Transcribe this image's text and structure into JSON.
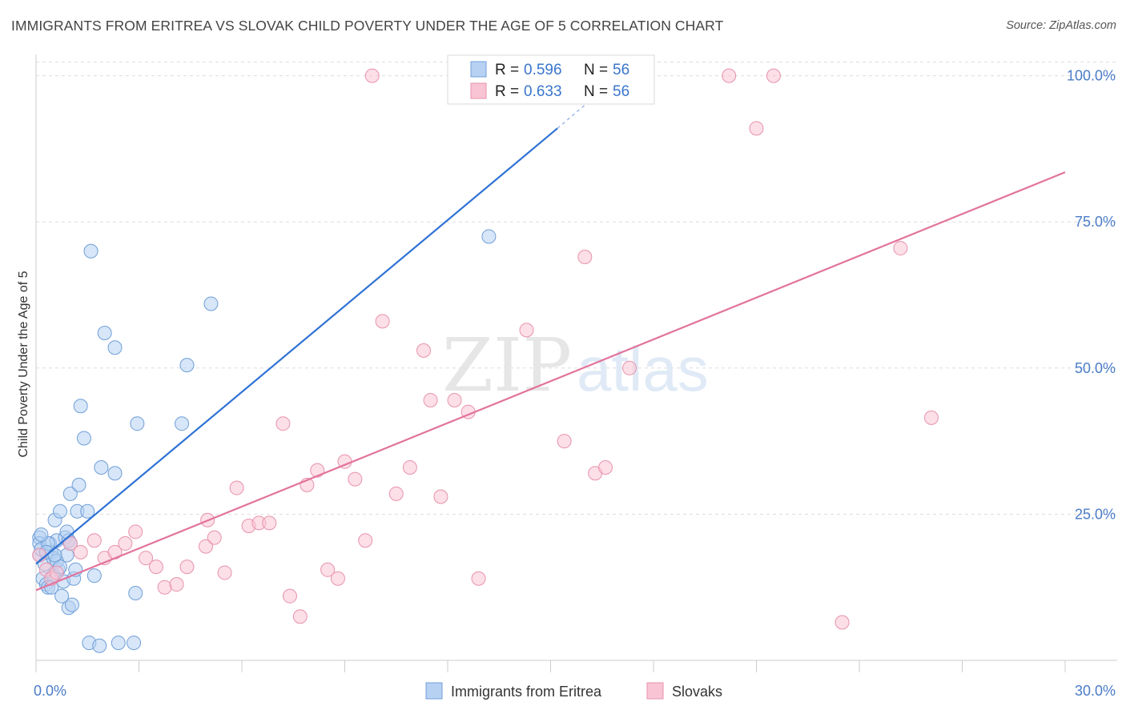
{
  "title": "IMMIGRANTS FROM ERITREA VS SLOVAK CHILD POVERTY UNDER THE AGE OF 5 CORRELATION CHART",
  "source": "Source: ZipAtlas.com",
  "watermark": {
    "zip": "ZIP",
    "atlas": "atlas"
  },
  "colors": {
    "blue_fill": "#b7d1f2",
    "blue_stroke": "#6f9fd8",
    "blue_line": "#2f72d4",
    "pink_fill": "#f9c4d4",
    "pink_stroke": "#e892ad",
    "pink_line": "#e2739c",
    "tick": "#4a7cc7",
    "grid": "#dddddd"
  },
  "legend": {
    "rows": [
      {
        "r_label": "R =",
        "r_value": "0.596",
        "n_label": "N =",
        "n_value": "56"
      },
      {
        "r_label": "R =",
        "r_value": "0.633",
        "n_label": "N =",
        "n_value": "56"
      }
    ]
  },
  "chart_data": {
    "type": "scatter",
    "title": "IMMIGRANTS FROM ERITREA VS SLOVAK CHILD POVERTY UNDER THE AGE OF 5 CORRELATION CHART",
    "xlabel": "",
    "ylabel": "Child Poverty Under the Age of 5",
    "xlim": [
      0,
      30
    ],
    "ylim": [
      0,
      102
    ],
    "x_tick_labels": [
      {
        "value": 0,
        "label": "0.0%"
      },
      {
        "value": 30,
        "label": "30.0%"
      }
    ],
    "y_tick_labels": [
      {
        "value": 25,
        "label": "25.0%"
      },
      {
        "value": 50,
        "label": "50.0%"
      },
      {
        "value": 75,
        "label": "75.0%"
      },
      {
        "value": 100,
        "label": "100.0%"
      }
    ],
    "x_minor_ticks": [
      0,
      3,
      6,
      9,
      12,
      15,
      18,
      21,
      24,
      27,
      30
    ],
    "grid": true,
    "legend_position": "top-center",
    "series": [
      {
        "name": "Immigrants from Eritrea",
        "color": "blue",
        "r": 0.596,
        "n": 56,
        "trend": {
          "x0": 0.0,
          "y0": 16.5,
          "x1": 15.2,
          "y1": 91.0,
          "dashed_to_x": 16.5,
          "dashed_to_y": 97.5
        },
        "points": [
          [
            0.1,
            21.0
          ],
          [
            0.1,
            20.0
          ],
          [
            0.1,
            18.0
          ],
          [
            0.15,
            19.0
          ],
          [
            0.2,
            14.0
          ],
          [
            0.25,
            16.5
          ],
          [
            0.3,
            13.0
          ],
          [
            0.35,
            12.5
          ],
          [
            0.4,
            20.0
          ],
          [
            0.45,
            18.5
          ],
          [
            0.5,
            17.5
          ],
          [
            0.55,
            24.0
          ],
          [
            0.6,
            20.5
          ],
          [
            0.65,
            15.5
          ],
          [
            0.7,
            25.5
          ],
          [
            0.75,
            11.0
          ],
          [
            0.8,
            13.5
          ],
          [
            0.85,
            21.0
          ],
          [
            0.9,
            18.0
          ],
          [
            0.95,
            9.0
          ],
          [
            1.0,
            28.5
          ],
          [
            1.05,
            9.5
          ],
          [
            1.1,
            14.0
          ],
          [
            1.15,
            15.5
          ],
          [
            1.2,
            25.5
          ],
          [
            1.25,
            30.0
          ],
          [
            1.3,
            43.5
          ],
          [
            1.4,
            38.0
          ],
          [
            1.5,
            25.5
          ],
          [
            1.55,
            3.0
          ],
          [
            1.6,
            70.0
          ],
          [
            1.7,
            14.5
          ],
          [
            1.85,
            2.5
          ],
          [
            1.9,
            33.0
          ],
          [
            2.0,
            56.0
          ],
          [
            2.3,
            53.5
          ],
          [
            2.3,
            32.0
          ],
          [
            2.4,
            3.0
          ],
          [
            2.85,
            3.0
          ],
          [
            2.9,
            11.5
          ],
          [
            2.95,
            40.5
          ],
          [
            4.25,
            40.5
          ],
          [
            4.4,
            50.5
          ],
          [
            5.1,
            61.0
          ],
          [
            13.2,
            72.5
          ],
          [
            0.35,
            20.0
          ],
          [
            0.5,
            14.5
          ],
          [
            0.6,
            17.0
          ],
          [
            0.95,
            20.5
          ],
          [
            0.7,
            16.0
          ],
          [
            0.3,
            18.5
          ],
          [
            1.0,
            20.0
          ],
          [
            0.15,
            21.5
          ],
          [
            0.9,
            22.0
          ],
          [
            0.45,
            12.5
          ],
          [
            0.55,
            18.0
          ]
        ]
      },
      {
        "name": "Slovaks",
        "color": "pink",
        "r": 0.633,
        "n": 56,
        "trend": {
          "x0": 0.0,
          "y0": 12.0,
          "x1": 30.0,
          "y1": 83.5
        },
        "points": [
          [
            0.1,
            18.0
          ],
          [
            0.3,
            15.5
          ],
          [
            0.45,
            14.0
          ],
          [
            0.6,
            15.0
          ],
          [
            1.0,
            20.0
          ],
          [
            1.3,
            18.5
          ],
          [
            1.7,
            20.5
          ],
          [
            2.0,
            17.5
          ],
          [
            2.3,
            18.5
          ],
          [
            2.6,
            20.0
          ],
          [
            2.9,
            22.0
          ],
          [
            3.2,
            17.5
          ],
          [
            3.5,
            16.0
          ],
          [
            3.75,
            12.5
          ],
          [
            4.1,
            13.0
          ],
          [
            4.4,
            16.0
          ],
          [
            4.95,
            19.5
          ],
          [
            5.0,
            24.0
          ],
          [
            5.2,
            21.0
          ],
          [
            5.5,
            15.0
          ],
          [
            5.85,
            29.5
          ],
          [
            6.2,
            23.0
          ],
          [
            6.5,
            23.5
          ],
          [
            6.8,
            23.5
          ],
          [
            7.2,
            40.5
          ],
          [
            7.4,
            11.0
          ],
          [
            7.7,
            7.5
          ],
          [
            7.9,
            30.0
          ],
          [
            8.2,
            32.5
          ],
          [
            8.5,
            15.5
          ],
          [
            8.8,
            14.0
          ],
          [
            9.0,
            34.0
          ],
          [
            9.3,
            31.0
          ],
          [
            9.6,
            20.5
          ],
          [
            9.8,
            100.0
          ],
          [
            10.1,
            58.0
          ],
          [
            10.5,
            28.5
          ],
          [
            10.9,
            33.0
          ],
          [
            11.3,
            53.0
          ],
          [
            11.5,
            44.5
          ],
          [
            11.8,
            28.0
          ],
          [
            12.2,
            44.5
          ],
          [
            12.6,
            42.5
          ],
          [
            12.9,
            14.0
          ],
          [
            14.3,
            56.5
          ],
          [
            15.4,
            37.5
          ],
          [
            16.0,
            69.0
          ],
          [
            16.3,
            32.0
          ],
          [
            16.6,
            33.0
          ],
          [
            17.3,
            50.0
          ],
          [
            20.2,
            100.0
          ],
          [
            21.0,
            91.0
          ],
          [
            21.5,
            100.0
          ],
          [
            23.5,
            6.5
          ],
          [
            25.2,
            70.5
          ],
          [
            26.1,
            41.5
          ]
        ]
      }
    ]
  }
}
